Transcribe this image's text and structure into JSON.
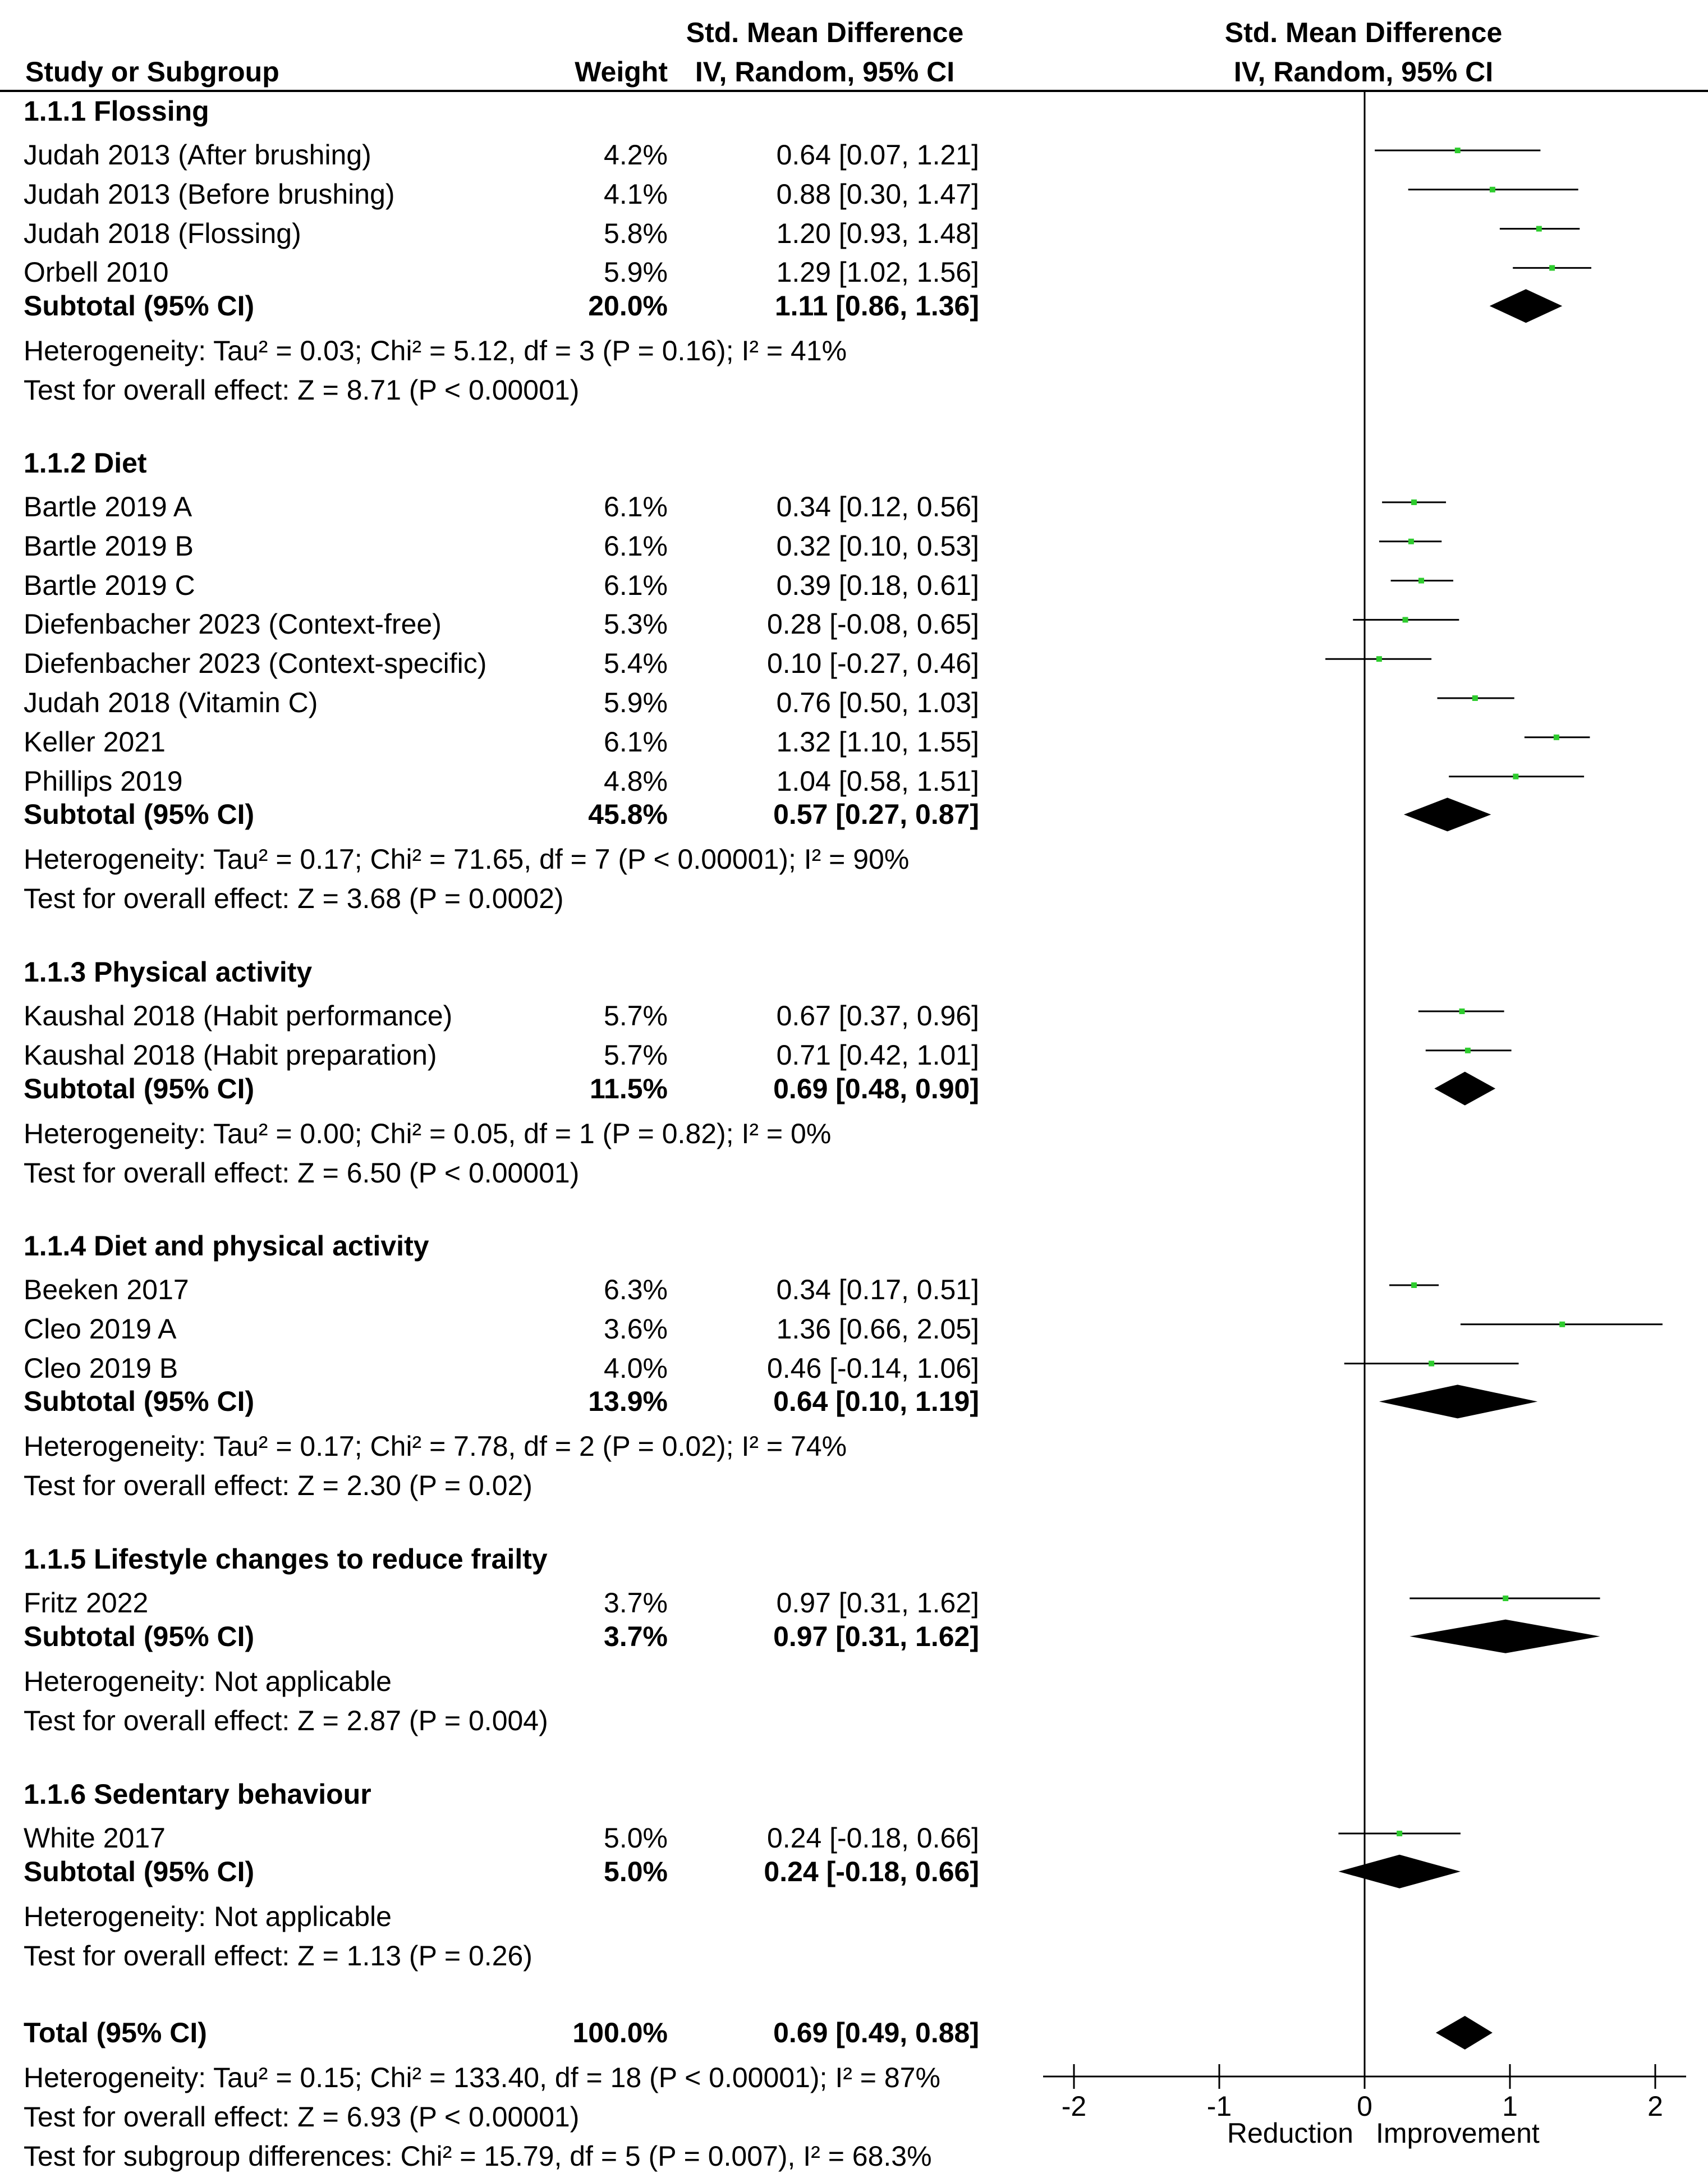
{
  "header": {
    "study_col": "Study or Subgroup",
    "weight_col": "Weight",
    "smd_col_line1": "Std. Mean Difference",
    "smd_col_line2": "IV, Random, 95% CI",
    "plot_col_line1": "Std. Mean Difference",
    "plot_col_line2": "IV, Random, 95% CI"
  },
  "colors": {
    "point": "#2ecc2e",
    "line": "#000000",
    "diamond": "#000000"
  },
  "chart_data": {
    "type": "forest",
    "xlabel_left": "Reduction",
    "xlabel_right": "Improvement",
    "xlim": [
      -2,
      2
    ],
    "ticks": [
      "-2",
      "-1",
      "0",
      "1",
      "2"
    ],
    "tick_values": [
      -2,
      -1,
      0,
      1,
      2
    ],
    "subgroups": [
      {
        "title": "1.1.1 Flossing",
        "studies": [
          {
            "name": "Judah 2013 (After brushing)",
            "weight": "4.2%",
            "ci_text": "0.64 [0.07, 1.21]",
            "est": 0.64,
            "lo": 0.07,
            "hi": 1.21
          },
          {
            "name": "Judah 2013 (Before brushing)",
            "weight": "4.1%",
            "ci_text": "0.88 [0.30, 1.47]",
            "est": 0.88,
            "lo": 0.3,
            "hi": 1.47
          },
          {
            "name": "Judah 2018 (Flossing)",
            "weight": "5.8%",
            "ci_text": "1.20 [0.93, 1.48]",
            "est": 1.2,
            "lo": 0.93,
            "hi": 1.48
          },
          {
            "name": "Orbell 2010",
            "weight": "5.9%",
            "ci_text": "1.29 [1.02, 1.56]",
            "est": 1.29,
            "lo": 1.02,
            "hi": 1.56
          }
        ],
        "subtotal": {
          "label": "Subtotal (95% CI)",
          "weight": "20.0%",
          "ci_text": "1.11 [0.86, 1.36]",
          "est": 1.11,
          "lo": 0.86,
          "hi": 1.36
        },
        "heterogeneity": "Heterogeneity: Tau² = 0.03; Chi² = 5.12, df = 3 (P = 0.16); I² = 41%",
        "overall": "Test for overall effect: Z = 8.71 (P < 0.00001)"
      },
      {
        "title": "1.1.2 Diet",
        "studies": [
          {
            "name": "Bartle 2019 A",
            "weight": "6.1%",
            "ci_text": "0.34 [0.12, 0.56]",
            "est": 0.34,
            "lo": 0.12,
            "hi": 0.56
          },
          {
            "name": "Bartle 2019 B",
            "weight": "6.1%",
            "ci_text": "0.32 [0.10, 0.53]",
            "est": 0.32,
            "lo": 0.1,
            "hi": 0.53
          },
          {
            "name": "Bartle 2019 C",
            "weight": "6.1%",
            "ci_text": "0.39 [0.18, 0.61]",
            "est": 0.39,
            "lo": 0.18,
            "hi": 0.61
          },
          {
            "name": "Diefenbacher 2023 (Context-free)",
            "weight": "5.3%",
            "ci_text": "0.28 [-0.08, 0.65]",
            "est": 0.28,
            "lo": -0.08,
            "hi": 0.65
          },
          {
            "name": "Diefenbacher 2023 (Context-specific)",
            "weight": "5.4%",
            "ci_text": "0.10 [-0.27, 0.46]",
            "est": 0.1,
            "lo": -0.27,
            "hi": 0.46
          },
          {
            "name": "Judah 2018 (Vitamin C)",
            "weight": "5.9%",
            "ci_text": "0.76 [0.50, 1.03]",
            "est": 0.76,
            "lo": 0.5,
            "hi": 1.03
          },
          {
            "name": "Keller 2021",
            "weight": "6.1%",
            "ci_text": "1.32 [1.10, 1.55]",
            "est": 1.32,
            "lo": 1.1,
            "hi": 1.55
          },
          {
            "name": "Phillips 2019",
            "weight": "4.8%",
            "ci_text": "1.04 [0.58, 1.51]",
            "est": 1.04,
            "lo": 0.58,
            "hi": 1.51
          }
        ],
        "subtotal": {
          "label": "Subtotal (95% CI)",
          "weight": "45.8%",
          "ci_text": "0.57 [0.27, 0.87]",
          "est": 0.57,
          "lo": 0.27,
          "hi": 0.87
        },
        "heterogeneity": "Heterogeneity: Tau² = 0.17; Chi² = 71.65, df = 7 (P < 0.00001); I² = 90%",
        "overall": "Test for overall effect: Z = 3.68 (P = 0.0002)"
      },
      {
        "title": "1.1.3 Physical activity",
        "studies": [
          {
            "name": "Kaushal 2018 (Habit performance)",
            "weight": "5.7%",
            "ci_text": "0.67 [0.37, 0.96]",
            "est": 0.67,
            "lo": 0.37,
            "hi": 0.96
          },
          {
            "name": "Kaushal 2018 (Habit preparation)",
            "weight": "5.7%",
            "ci_text": "0.71 [0.42, 1.01]",
            "est": 0.71,
            "lo": 0.42,
            "hi": 1.01
          }
        ],
        "subtotal": {
          "label": "Subtotal (95% CI)",
          "weight": "11.5%",
          "ci_text": "0.69 [0.48, 0.90]",
          "est": 0.69,
          "lo": 0.48,
          "hi": 0.9
        },
        "heterogeneity": "Heterogeneity: Tau² = 0.00; Chi² = 0.05, df = 1 (P = 0.82); I² = 0%",
        "overall": "Test for overall effect: Z = 6.50 (P < 0.00001)"
      },
      {
        "title": "1.1.4 Diet and physical activity",
        "studies": [
          {
            "name": "Beeken 2017",
            "weight": "6.3%",
            "ci_text": "0.34 [0.17, 0.51]",
            "est": 0.34,
            "lo": 0.17,
            "hi": 0.51
          },
          {
            "name": "Cleo 2019 A",
            "weight": "3.6%",
            "ci_text": "1.36 [0.66, 2.05]",
            "est": 1.36,
            "lo": 0.66,
            "hi": 2.05
          },
          {
            "name": "Cleo 2019 B",
            "weight": "4.0%",
            "ci_text": "0.46 [-0.14, 1.06]",
            "est": 0.46,
            "lo": -0.14,
            "hi": 1.06
          }
        ],
        "subtotal": {
          "label": "Subtotal (95% CI)",
          "weight": "13.9%",
          "ci_text": "0.64 [0.10, 1.19]",
          "est": 0.64,
          "lo": 0.1,
          "hi": 1.19
        },
        "heterogeneity": "Heterogeneity: Tau² = 0.17; Chi² = 7.78, df = 2 (P = 0.02); I² = 74%",
        "overall": "Test for overall effect: Z = 2.30 (P = 0.02)"
      },
      {
        "title": "1.1.5 Lifestyle changes to reduce frailty",
        "studies": [
          {
            "name": "Fritz 2022",
            "weight": "3.7%",
            "ci_text": "0.97 [0.31, 1.62]",
            "est": 0.97,
            "lo": 0.31,
            "hi": 1.62
          }
        ],
        "subtotal": {
          "label": "Subtotal (95% CI)",
          "weight": "3.7%",
          "ci_text": "0.97 [0.31, 1.62]",
          "est": 0.97,
          "lo": 0.31,
          "hi": 1.62
        },
        "heterogeneity": "Heterogeneity: Not applicable",
        "overall": "Test for overall effect: Z = 2.87 (P = 0.004)"
      },
      {
        "title": "1.1.6 Sedentary behaviour",
        "studies": [
          {
            "name": "White 2017",
            "weight": "5.0%",
            "ci_text": "0.24 [-0.18, 0.66]",
            "est": 0.24,
            "lo": -0.18,
            "hi": 0.66
          }
        ],
        "subtotal": {
          "label": "Subtotal (95% CI)",
          "weight": "5.0%",
          "ci_text": "0.24 [-0.18, 0.66]",
          "est": 0.24,
          "lo": -0.18,
          "hi": 0.66
        },
        "heterogeneity": "Heterogeneity: Not applicable",
        "overall": "Test for overall effect: Z = 1.13 (P = 0.26)"
      }
    ],
    "total": {
      "label": "Total (95% CI)",
      "weight": "100.0%",
      "ci_text": "0.69 [0.49, 0.88]",
      "est": 0.69,
      "lo": 0.49,
      "hi": 0.88
    },
    "total_heterogeneity": "Heterogeneity: Tau² = 0.15; Chi² = 133.40, df = 18 (P < 0.00001); I² = 87%",
    "total_overall": "Test for overall effect: Z = 6.93 (P < 0.00001)",
    "subgroup_diff": "Test for subgroup differences: Chi² = 15.79, df = 5 (P = 0.007), I² = 68.3%"
  }
}
